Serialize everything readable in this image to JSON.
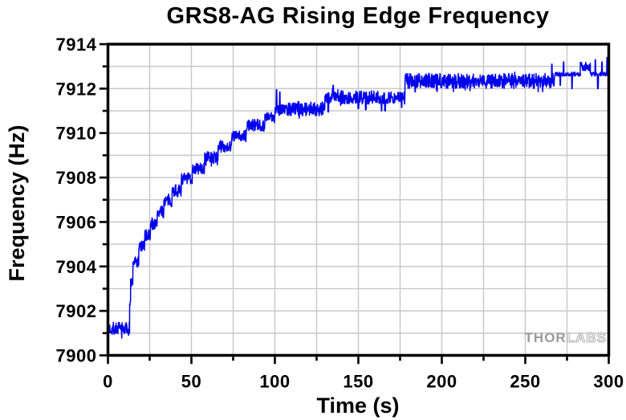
{
  "watermark": {
    "solid": "THOR",
    "outline": "LABS"
  },
  "chart_data": {
    "type": "line",
    "title": "GRS8-AG Rising Edge Frequency",
    "xlabel": "Time (s)",
    "ylabel": "Frequency (Hz)",
    "xlim": [
      0,
      300
    ],
    "ylim": [
      7900,
      7914
    ],
    "x_major_ticks": [
      0,
      50,
      100,
      150,
      200,
      250,
      300
    ],
    "x_tick_step_major": 50,
    "x_tick_step_minor": 25,
    "y_major_ticks": [
      7900,
      7902,
      7904,
      7906,
      7908,
      7910,
      7912,
      7914
    ],
    "y_tick_step_major": 2,
    "y_tick_step_minor": 1,
    "grid": true,
    "grid_color": "#c9c9c9",
    "axis_color": "#000000",
    "line_color": "#0000ee",
    "noise_seed": 7,
    "sample_dt": 0.18,
    "series": [
      {
        "name": "rising-edge-frequency",
        "segments": [
          {
            "t0": 0,
            "t1": 13,
            "f": 7901.2,
            "amp": 0.3
          },
          {
            "t0": 13,
            "t1": 13.6,
            "f": 7902.3,
            "amp": 0.22
          },
          {
            "t0": 13.6,
            "t1": 15,
            "f": 7903.3,
            "amp": 0.22
          },
          {
            "t0": 15,
            "t1": 18.5,
            "f": 7904.2,
            "amp": 0.26
          },
          {
            "t0": 18.5,
            "t1": 22,
            "f": 7904.9,
            "amp": 0.26
          },
          {
            "t0": 22,
            "t1": 25.5,
            "f": 7905.4,
            "amp": 0.26
          },
          {
            "t0": 25.5,
            "t1": 29.5,
            "f": 7905.9,
            "amp": 0.26
          },
          {
            "t0": 29.5,
            "t1": 33.5,
            "f": 7906.45,
            "amp": 0.26
          },
          {
            "t0": 33.5,
            "t1": 38.5,
            "f": 7906.95,
            "amp": 0.26
          },
          {
            "t0": 38.5,
            "t1": 44,
            "f": 7907.4,
            "amp": 0.27
          },
          {
            "t0": 44,
            "t1": 50.5,
            "f": 7907.95,
            "amp": 0.27
          },
          {
            "t0": 50.5,
            "t1": 58,
            "f": 7908.4,
            "amp": 0.27
          },
          {
            "t0": 58,
            "t1": 66,
            "f": 7908.9,
            "amp": 0.27
          },
          {
            "t0": 66,
            "t1": 74,
            "f": 7909.4,
            "amp": 0.27
          },
          {
            "t0": 74,
            "t1": 83,
            "f": 7909.85,
            "amp": 0.27
          },
          {
            "t0": 83,
            "t1": 94,
            "f": 7910.35,
            "amp": 0.27
          },
          {
            "t0": 94,
            "t1": 100,
            "f": 7910.7,
            "amp": 0.24
          },
          {
            "t0": 100,
            "t1": 130,
            "f": 7911.1,
            "amp": 0.32
          },
          {
            "t0": 130,
            "t1": 178,
            "f": 7911.6,
            "amp": 0.3
          },
          {
            "t0": 178,
            "t1": 268,
            "f": 7912.35,
            "amp": 0.34
          },
          {
            "t0": 268,
            "t1": 283,
            "f": 7912.65,
            "amp": 0.09
          },
          {
            "t0": 283,
            "t1": 289,
            "f": 7913.0,
            "amp": 0.2
          },
          {
            "t0": 289,
            "t1": 300,
            "f": 7912.65,
            "amp": 0.09
          }
        ],
        "spikes": [
          {
            "t": 101,
            "f": 7911.95
          },
          {
            "t": 103,
            "f": 7911.85
          },
          {
            "t": 132,
            "f": 7910.95
          },
          {
            "t": 135,
            "f": 7912.15
          },
          {
            "t": 150,
            "f": 7911.1
          },
          {
            "t": 154.5,
            "f": 7911.05
          },
          {
            "t": 164,
            "f": 7911.0
          },
          {
            "t": 166,
            "f": 7911.0
          },
          {
            "t": 176,
            "f": 7911.15
          },
          {
            "t": 184,
            "f": 7911.85
          },
          {
            "t": 266,
            "f": 7913.1
          },
          {
            "t": 271,
            "f": 7912.15
          },
          {
            "t": 273,
            "f": 7913.2
          },
          {
            "t": 278,
            "f": 7912.0
          },
          {
            "t": 292,
            "f": 7913.3
          },
          {
            "t": 293.5,
            "f": 7912.0
          },
          {
            "t": 296,
            "f": 7913.2
          },
          {
            "t": 299,
            "f": 7913.4
          }
        ]
      }
    ]
  }
}
